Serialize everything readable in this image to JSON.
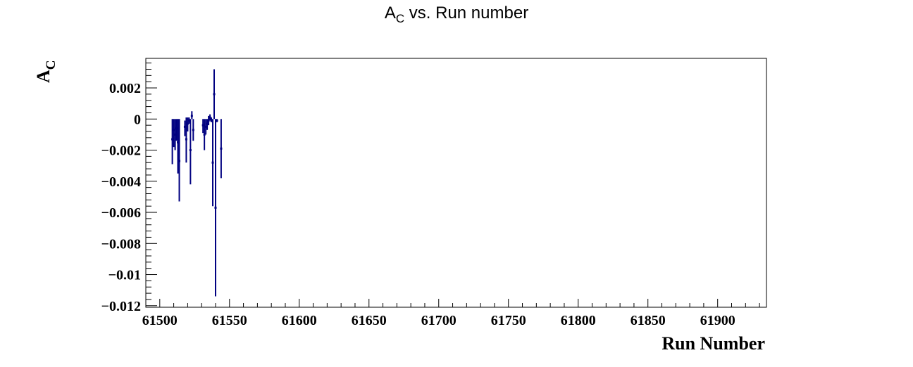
{
  "chart_data": {
    "type": "scatter",
    "title": {
      "main": "A",
      "sub": "C",
      "rest": " vs. Run number"
    },
    "xlabel": "Run Number",
    "ylabel": {
      "main": "A",
      "sub": "C"
    },
    "xlim": [
      61490,
      61935
    ],
    "ylim": [
      -0.0121,
      0.0039
    ],
    "x_ticks": [
      61500,
      61550,
      61600,
      61650,
      61700,
      61750,
      61800,
      61850,
      61900
    ],
    "x_tick_labels": [
      "61500",
      "61550",
      "61600",
      "61650",
      "61700",
      "61750",
      "61800",
      "61850",
      "61900"
    ],
    "y_ticks": [
      0.002,
      0,
      -0.002,
      -0.004,
      -0.006,
      -0.008,
      -0.01,
      -0.012
    ],
    "y_tick_labels": [
      "0.002",
      "0",
      "−0.002",
      "−0.004",
      "−0.006",
      "−0.008",
      "−0.01",
      "−0.012"
    ],
    "grid": false,
    "legend": "none",
    "color": "#000080",
    "series": [
      {
        "points": [
          {
            "x": 61509,
            "y": -0.0013,
            "ylow": -0.0029,
            "yhigh": 0.0
          },
          {
            "x": 61510,
            "y": -0.0007,
            "ylow": -0.0018,
            "yhigh": 0.0
          },
          {
            "x": 61511,
            "y": -0.001,
            "ylow": -0.002,
            "yhigh": 0.0
          },
          {
            "x": 61512,
            "y": -0.0006,
            "ylow": -0.0014,
            "yhigh": 0.0
          },
          {
            "x": 61513,
            "y": -0.0015,
            "ylow": -0.0035,
            "yhigh": 0.0
          },
          {
            "x": 61514,
            "y": -0.0027,
            "ylow": -0.0053,
            "yhigh": 0.0
          },
          {
            "x": 61518,
            "y": -0.0005,
            "ylow": -0.0011,
            "yhigh": -0.0001
          },
          {
            "x": 61519,
            "y": -0.0013,
            "ylow": -0.0028,
            "yhigh": 0.0001
          },
          {
            "x": 61520,
            "y": -0.0003,
            "ylow": -0.0008,
            "yhigh": 0.0001
          },
          {
            "x": 61521,
            "y": -0.0001,
            "ylow": -0.0003,
            "yhigh": 0.0001
          },
          {
            "x": 61522,
            "y": -0.002,
            "ylow": -0.0042,
            "yhigh": 0.0
          },
          {
            "x": 61523,
            "y": 0.0002,
            "ylow": 0.0,
            "yhigh": 0.0005
          },
          {
            "x": 61524,
            "y": -0.0007,
            "ylow": -0.0014,
            "yhigh": 0.0
          },
          {
            "x": 61531,
            "y": -0.0004,
            "ylow": -0.0009,
            "yhigh": 0.0
          },
          {
            "x": 61532,
            "y": -0.001,
            "ylow": -0.002,
            "yhigh": 0.0
          },
          {
            "x": 61533,
            "y": -0.0005,
            "ylow": -0.001,
            "yhigh": 0.0
          },
          {
            "x": 61534,
            "y": -0.0003,
            "ylow": -0.0007,
            "yhigh": 0.0
          },
          {
            "x": 61535,
            "y": -0.0001,
            "ylow": -0.0004,
            "yhigh": 0.0002
          },
          {
            "x": 61536,
            "y": 0.0001,
            "ylow": -0.0001,
            "yhigh": 0.0003
          },
          {
            "x": 61537,
            "y": -0.0001,
            "ylow": -0.0002,
            "yhigh": 0.0001
          },
          {
            "x": 61538,
            "y": -0.0028,
            "ylow": -0.0056,
            "yhigh": 0.0
          },
          {
            "x": 61539,
            "y": 0.0016,
            "ylow": 0.0,
            "yhigh": 0.0032
          },
          {
            "x": 61540,
            "y": -0.0057,
            "ylow": -0.0114,
            "yhigh": 0.0
          },
          {
            "x": 61541,
            "y": -0.0001,
            "ylow": -0.0002,
            "yhigh": 0.0
          },
          {
            "x": 61544,
            "y": -0.0019,
            "ylow": -0.0038,
            "yhigh": 0.0
          }
        ]
      }
    ]
  }
}
